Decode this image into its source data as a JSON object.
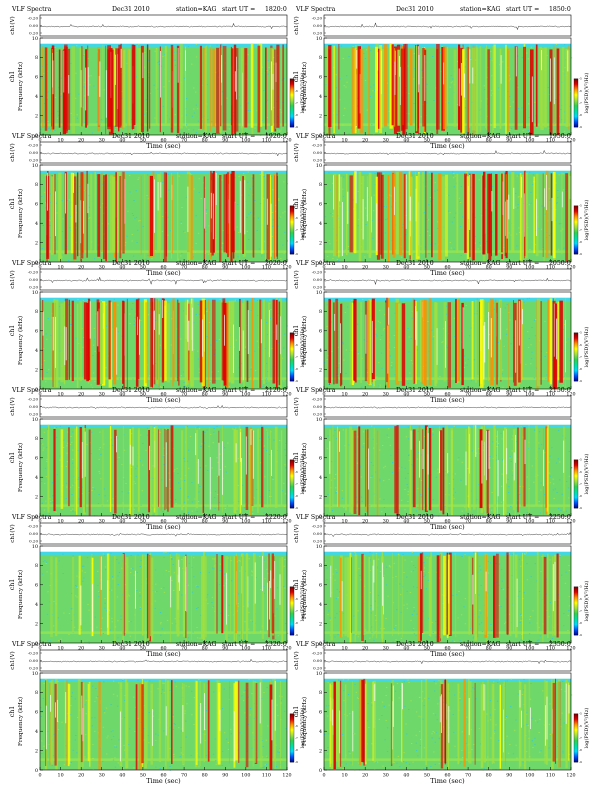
{
  "page": {
    "panel_header": "VLF Spectra",
    "date_label": "Dec31 2010",
    "station_label": "station=KAG",
    "start_prefix": "start  UT =",
    "line_axis_label": "ch1(V)",
    "freq_axis_label": "Frequency (kHz)",
    "channel_label": "ch1",
    "time_axis_label": "Time (sec)",
    "colorbar_label": "log(PSD)(V²/Hz)"
  },
  "colors": {
    "background": "#ffffff",
    "axis": "#000000",
    "spectrogram_band": [
      "#000080",
      "#0050ff",
      "#00d8ff",
      "#00e0a0",
      "#30d050",
      "#a0e040",
      "#ffff00",
      "#ff9000",
      "#e00000",
      "#700000"
    ]
  },
  "chart_data": [
    {
      "type": "heatmap",
      "start_time": "1820:0",
      "xlabel": "Time (sec)",
      "ylabel": "Frequency (kHz)",
      "xlim": [
        0,
        120
      ],
      "ylim": [
        0,
        10
      ],
      "x_ticks": [
        "0",
        "10",
        "20",
        "30",
        "40",
        "50",
        "60",
        "70",
        "80",
        "90",
        "100",
        "110",
        "120"
      ],
      "y_ticks": [
        "0",
        "2",
        "4",
        "6",
        "8",
        "10"
      ],
      "line_y_ticks": [
        "-0.20",
        "0.00",
        "0.20"
      ],
      "colorbar_ticks": [
        "-9",
        "-8",
        "-7",
        "-6",
        "-5"
      ],
      "signal_band_khz": [
        0,
        9.4
      ],
      "activity": 0.85
    },
    {
      "type": "heatmap",
      "start_time": "1850:0",
      "xlabel": "Time (sec)",
      "ylabel": "Frequency (kHz)",
      "xlim": [
        0,
        120
      ],
      "ylim": [
        0,
        10
      ],
      "x_ticks": [
        "0",
        "10",
        "20",
        "30",
        "40",
        "50",
        "60",
        "70",
        "80",
        "90",
        "100",
        "110",
        "120"
      ],
      "y_ticks": [
        "0",
        "2",
        "4",
        "6",
        "8",
        "10"
      ],
      "line_y_ticks": [
        "-0.20",
        "0.00",
        "0.20"
      ],
      "colorbar_ticks": [
        "-9",
        "-8",
        "-7",
        "-6",
        "-5"
      ],
      "signal_band_khz": [
        0,
        9.4
      ],
      "activity": 0.82
    },
    {
      "type": "heatmap",
      "start_time": "1920:0",
      "xlabel": "Time (sec)",
      "ylabel": "Frequency (kHz)",
      "xlim": [
        0,
        120
      ],
      "ylim": [
        0,
        10
      ],
      "x_ticks": [
        "0",
        "10",
        "20",
        "30",
        "40",
        "50",
        "60",
        "70",
        "80",
        "90",
        "100",
        "110",
        "120"
      ],
      "y_ticks": [
        "0",
        "2",
        "4",
        "6",
        "8",
        "10"
      ],
      "line_y_ticks": [
        "-0.20",
        "0.00",
        "0.20"
      ],
      "colorbar_ticks": [
        "-9",
        "-8",
        "-7",
        "-6",
        "-5"
      ],
      "signal_band_khz": [
        0,
        9.4
      ],
      "activity": 0.72
    },
    {
      "type": "heatmap",
      "start_time": "1950:0",
      "xlabel": "Time (sec)",
      "ylabel": "Frequency (kHz)",
      "xlim": [
        0,
        120
      ],
      "ylim": [
        0,
        10
      ],
      "x_ticks": [
        "0",
        "10",
        "20",
        "30",
        "40",
        "50",
        "60",
        "70",
        "80",
        "90",
        "100",
        "110",
        "120"
      ],
      "y_ticks": [
        "0",
        "2",
        "4",
        "6",
        "8",
        "10"
      ],
      "line_y_ticks": [
        "-0.20",
        "0.00",
        "0.20"
      ],
      "colorbar_ticks": [
        "-9",
        "-8",
        "-7",
        "-6",
        "-5"
      ],
      "signal_band_khz": [
        0,
        9.4
      ],
      "activity": 0.74
    },
    {
      "type": "heatmap",
      "start_time": "2020:0",
      "xlabel": "Time (sec)",
      "ylabel": "Frequency (kHz)",
      "xlim": [
        0,
        120
      ],
      "ylim": [
        0,
        10
      ],
      "x_ticks": [
        "0",
        "10",
        "20",
        "30",
        "40",
        "50",
        "60",
        "70",
        "80",
        "90",
        "100",
        "110",
        "120"
      ],
      "y_ticks": [
        "0",
        "2",
        "4",
        "6",
        "8",
        "10"
      ],
      "line_y_ticks": [
        "-0.20",
        "0.00",
        "0.20"
      ],
      "colorbar_ticks": [
        "-9",
        "-8",
        "-7",
        "-6",
        "-5"
      ],
      "signal_band_khz": [
        0,
        9.4
      ],
      "activity": 0.78
    },
    {
      "type": "heatmap",
      "start_time": "2050:0",
      "xlabel": "Time (sec)",
      "ylabel": "Frequency (kHz)",
      "xlim": [
        0,
        120
      ],
      "ylim": [
        0,
        10
      ],
      "x_ticks": [
        "0",
        "10",
        "20",
        "30",
        "40",
        "50",
        "60",
        "70",
        "80",
        "90",
        "100",
        "110",
        "120"
      ],
      "y_ticks": [
        "0",
        "2",
        "4",
        "6",
        "8",
        "10"
      ],
      "line_y_ticks": [
        "-0.20",
        "0.00",
        "0.20"
      ],
      "colorbar_ticks": [
        "-9",
        "-8",
        "-7",
        "-6",
        "-5"
      ],
      "signal_band_khz": [
        0,
        9.4
      ],
      "activity": 0.8
    },
    {
      "type": "heatmap",
      "start_time": "2120:0",
      "xlabel": "Time (sec)",
      "ylabel": "Frequency (kHz)",
      "xlim": [
        0,
        120
      ],
      "ylim": [
        0,
        10
      ],
      "x_ticks": [
        "0",
        "10",
        "20",
        "30",
        "40",
        "50",
        "60",
        "70",
        "80",
        "90",
        "100",
        "110",
        "120"
      ],
      "y_ticks": [
        "0",
        "2",
        "4",
        "6",
        "8",
        "10"
      ],
      "line_y_ticks": [
        "-0.20",
        "0.00",
        "0.20"
      ],
      "colorbar_ticks": [
        "-9",
        "-8",
        "-7",
        "-6",
        "-5"
      ],
      "signal_band_khz": [
        0,
        9.4
      ],
      "activity": 0.42
    },
    {
      "type": "heatmap",
      "start_time": "2150:0",
      "xlabel": "Time (sec)",
      "ylabel": "Frequency (kHz)",
      "xlim": [
        0,
        120
      ],
      "ylim": [
        0,
        10
      ],
      "x_ticks": [
        "0",
        "10",
        "20",
        "30",
        "40",
        "50",
        "60",
        "70",
        "80",
        "90",
        "100",
        "110",
        "120"
      ],
      "y_ticks": [
        "0",
        "2",
        "4",
        "6",
        "8",
        "10"
      ],
      "line_y_ticks": [
        "-0.20",
        "0.00",
        "0.20"
      ],
      "colorbar_ticks": [
        "-9",
        "-8",
        "-7",
        "-6",
        "-5"
      ],
      "signal_band_khz": [
        0,
        9.4
      ],
      "activity": 0.48
    },
    {
      "type": "heatmap",
      "start_time": "2220:0",
      "xlabel": "Time (sec)",
      "ylabel": "Frequency (kHz)",
      "xlim": [
        0,
        120
      ],
      "ylim": [
        0,
        10
      ],
      "x_ticks": [
        "0",
        "10",
        "20",
        "30",
        "40",
        "50",
        "60",
        "70",
        "80",
        "90",
        "100",
        "110",
        "120"
      ],
      "y_ticks": [
        "0",
        "2",
        "4",
        "6",
        "8",
        "10"
      ],
      "line_y_ticks": [
        "-0.20",
        "0.00",
        "0.20"
      ],
      "colorbar_ticks": [
        "-9",
        "-8",
        "-7",
        "-6",
        "-5"
      ],
      "signal_band_khz": [
        0,
        9.4
      ],
      "activity": 0.4
    },
    {
      "type": "heatmap",
      "start_time": "2250:0",
      "xlabel": "Time (sec)",
      "ylabel": "Frequency (kHz)",
      "xlim": [
        0,
        120
      ],
      "ylim": [
        0,
        10
      ],
      "x_ticks": [
        "0",
        "10",
        "20",
        "30",
        "40",
        "50",
        "60",
        "70",
        "80",
        "90",
        "100",
        "110",
        "120"
      ],
      "y_ticks": [
        "0",
        "2",
        "4",
        "6",
        "8",
        "10"
      ],
      "line_y_ticks": [
        "-0.20",
        "0.00",
        "0.20"
      ],
      "colorbar_ticks": [
        "-9",
        "-8",
        "-7",
        "-6",
        "-5"
      ],
      "signal_band_khz": [
        0,
        9.4
      ],
      "activity": 0.44
    },
    {
      "type": "heatmap",
      "start_time": "2320:0",
      "xlabel": "Time (sec)",
      "ylabel": "Frequency (kHz)",
      "xlim": [
        0,
        120
      ],
      "ylim": [
        0,
        10
      ],
      "x_ticks": [
        "0",
        "10",
        "20",
        "30",
        "40",
        "50",
        "60",
        "70",
        "80",
        "90",
        "100",
        "110",
        "120"
      ],
      "y_ticks": [
        "0",
        "2",
        "4",
        "6",
        "8",
        "10"
      ],
      "line_y_ticks": [
        "-0.20",
        "0.00",
        "0.20"
      ],
      "colorbar_ticks": [
        "-9",
        "-8",
        "-7",
        "-6",
        "-5"
      ],
      "signal_band_khz": [
        0,
        9.4
      ],
      "activity": 0.46
    },
    {
      "type": "heatmap",
      "start_time": "2350:0",
      "xlabel": "Time (sec)",
      "ylabel": "Frequency (kHz)",
      "xlim": [
        0,
        120
      ],
      "ylim": [
        0,
        10
      ],
      "x_ticks": [
        "0",
        "10",
        "20",
        "30",
        "40",
        "50",
        "60",
        "70",
        "80",
        "90",
        "100",
        "110",
        "120"
      ],
      "y_ticks": [
        "0",
        "2",
        "4",
        "6",
        "8",
        "10"
      ],
      "line_y_ticks": [
        "-0.20",
        "0.00",
        "0.20"
      ],
      "colorbar_ticks": [
        "-9",
        "-8",
        "-7",
        "-6",
        "-5"
      ],
      "signal_band_khz": [
        0,
        9.4
      ],
      "activity": 0.45
    }
  ]
}
